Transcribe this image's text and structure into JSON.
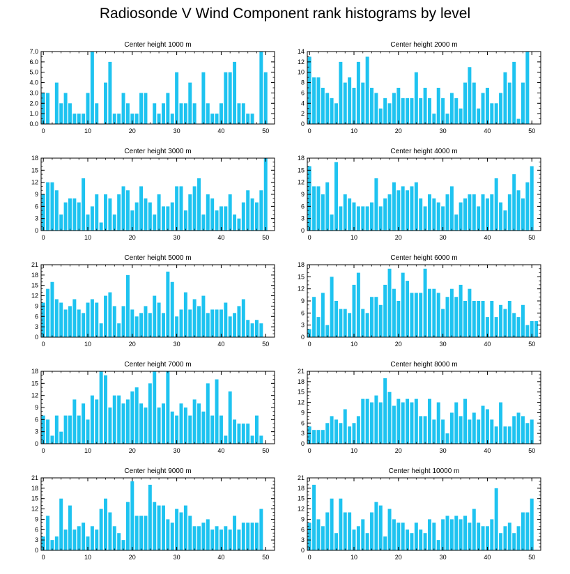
{
  "title": "Radiosonde V Wind Component rank histograms by level",
  "colors": {
    "bar": "#1EC3F0",
    "axis": "#000000",
    "background": "#ffffff"
  },
  "chart_data": [
    {
      "type": "bar",
      "title": "Center height 1000 m",
      "ylim": [
        0,
        7
      ],
      "yticks": [
        0,
        7
      ],
      "ytick_decimals": 1,
      "yminor": 0.5,
      "xlim": [
        -0.5,
        52
      ],
      "xticks": [
        0,
        10,
        20,
        30,
        40,
        50
      ],
      "values": [
        3,
        3,
        0,
        4,
        2,
        3,
        2,
        1,
        1,
        1,
        3,
        7,
        2,
        0,
        4,
        6,
        1,
        1,
        3,
        2,
        1,
        1,
        3,
        3,
        0,
        2,
        1,
        2,
        3,
        1,
        5,
        2,
        2,
        4,
        2,
        0,
        5,
        2,
        1,
        1,
        2,
        5,
        5,
        6,
        2,
        2,
        1,
        1,
        0,
        7,
        5
      ]
    },
    {
      "type": "bar",
      "title": "Center height 2000 m",
      "ylim": [
        0,
        14
      ],
      "yticks": [
        0,
        14
      ],
      "ytick_decimals": 0,
      "yminor": 1,
      "xlim": [
        -0.5,
        52
      ],
      "xticks": [
        0,
        10,
        20,
        30,
        40,
        50
      ],
      "values": [
        13,
        9,
        9,
        7,
        6,
        5,
        4,
        12,
        8,
        9,
        7,
        12,
        8,
        13,
        7,
        6,
        3,
        5,
        4,
        6,
        7,
        5,
        5,
        5,
        10,
        5,
        7,
        5,
        2,
        7,
        5,
        2,
        6,
        5,
        3,
        8,
        11,
        8,
        3,
        6,
        7,
        4,
        4,
        6,
        10,
        8,
        12,
        1,
        8,
        14
      ]
    },
    {
      "type": "bar",
      "title": "Center height 3000 m",
      "ylim": [
        0,
        18
      ],
      "yticks": [
        0,
        18
      ],
      "ytick_decimals": 0,
      "yminor": 1,
      "xlim": [
        -0.5,
        52
      ],
      "xticks": [
        0,
        10,
        20,
        30,
        40,
        50
      ],
      "values": [
        9,
        12,
        12,
        10,
        4,
        7,
        8,
        8,
        7,
        13,
        4,
        6,
        9,
        2,
        9,
        8,
        4,
        9,
        11,
        10,
        5,
        7,
        11,
        8,
        7,
        4,
        9,
        6,
        6,
        7,
        11,
        11,
        5,
        9,
        11,
        13,
        4,
        9,
        8,
        5,
        6,
        6,
        9,
        4,
        3,
        7,
        10,
        8,
        7,
        10,
        18
      ]
    },
    {
      "type": "bar",
      "title": "Center height 4000 m",
      "ylim": [
        0,
        18
      ],
      "yticks": [
        0,
        18
      ],
      "ytick_decimals": 0,
      "yminor": 1,
      "xlim": [
        -0.5,
        52
      ],
      "xticks": [
        0,
        10,
        20,
        30,
        40,
        50
      ],
      "values": [
        16,
        11,
        11,
        9,
        12,
        4,
        17,
        6,
        9,
        8,
        7,
        6,
        6,
        6,
        7,
        13,
        6,
        8,
        9,
        12,
        10,
        11,
        10,
        11,
        12,
        8,
        6,
        9,
        8,
        7,
        6,
        9,
        11,
        4,
        7,
        8,
        9,
        9,
        6,
        9,
        8,
        9,
        13,
        7,
        5,
        9,
        14,
        10,
        8,
        12,
        16
      ]
    },
    {
      "type": "bar",
      "title": "Center height 5000 m",
      "ylim": [
        0,
        21
      ],
      "yticks": [
        0,
        21
      ],
      "ytick_decimals": 0,
      "yminor": 1,
      "xlim": [
        -0.5,
        52
      ],
      "xticks": [
        0,
        10,
        20,
        30,
        40,
        50
      ],
      "values": [
        10,
        14,
        16,
        11,
        10,
        8,
        9,
        11,
        8,
        7,
        10,
        11,
        10,
        4,
        12,
        13,
        9,
        4,
        9,
        18,
        8,
        6,
        7,
        9,
        7,
        12,
        10,
        7,
        19,
        16,
        6,
        8,
        13,
        8,
        11,
        9,
        12,
        7,
        8,
        8,
        8,
        10,
        6,
        7,
        9,
        11,
        5,
        4,
        5,
        4
      ]
    },
    {
      "type": "bar",
      "title": "Center height 6000 m",
      "ylim": [
        0,
        18
      ],
      "yticks": [
        0,
        18
      ],
      "ytick_decimals": 0,
      "yminor": 1,
      "xlim": [
        -0.5,
        52
      ],
      "xticks": [
        0,
        10,
        20,
        30,
        40,
        50
      ],
      "values": [
        2,
        10,
        5,
        11,
        3,
        15,
        9,
        7,
        7,
        6,
        13,
        16,
        7,
        6,
        10,
        10,
        8,
        13,
        17,
        12,
        9,
        16,
        14,
        11,
        11,
        11,
        17,
        12,
        12,
        11,
        7,
        10,
        12,
        10,
        13,
        9,
        12,
        9,
        9,
        9,
        5,
        9,
        5,
        8,
        7,
        9,
        6,
        5,
        8,
        3,
        4,
        4
      ]
    },
    {
      "type": "bar",
      "title": "Center height 7000 m",
      "ylim": [
        0,
        18
      ],
      "yticks": [
        0,
        18
      ],
      "ytick_decimals": 0,
      "yminor": 1,
      "xlim": [
        -0.5,
        52
      ],
      "xticks": [
        0,
        10,
        20,
        30,
        40,
        50
      ],
      "values": [
        7,
        6,
        2,
        7,
        3,
        7,
        7,
        11,
        7,
        10,
        6,
        12,
        11,
        18,
        17,
        9,
        12,
        12,
        10,
        11,
        13,
        14,
        10,
        9,
        15,
        18,
        9,
        10,
        18,
        8,
        7,
        10,
        9,
        7,
        11,
        10,
        8,
        15,
        7,
        16,
        7,
        2,
        13,
        6,
        5,
        5,
        5,
        2,
        7,
        2
      ]
    },
    {
      "type": "bar",
      "title": "Center height 8000 m",
      "ylim": [
        0,
        21
      ],
      "yticks": [
        0,
        21
      ],
      "ytick_decimals": 0,
      "yminor": 1,
      "xlim": [
        -0.5,
        52
      ],
      "xticks": [
        0,
        10,
        20,
        30,
        40,
        50
      ],
      "values": [
        5,
        4,
        4,
        4,
        6,
        8,
        7,
        6,
        10,
        5,
        6,
        8,
        13,
        13,
        12,
        14,
        12,
        19,
        15,
        11,
        13,
        12,
        13,
        12,
        13,
        8,
        8,
        13,
        7,
        12,
        7,
        3,
        9,
        12,
        8,
        13,
        7,
        9,
        7,
        11,
        10,
        7,
        5,
        12,
        5,
        5,
        8,
        9,
        8,
        6,
        7
      ]
    },
    {
      "type": "bar",
      "title": "Center height 9000 m",
      "ylim": [
        0,
        21
      ],
      "yticks": [
        0,
        21
      ],
      "ytick_decimals": 0,
      "yminor": 1,
      "xlim": [
        -0.5,
        52
      ],
      "xticks": [
        0,
        10,
        20,
        30,
        40,
        50
      ],
      "values": [
        4,
        10,
        3,
        4,
        15,
        6,
        13,
        6,
        7,
        8,
        4,
        7,
        6,
        12,
        15,
        11,
        7,
        5,
        3,
        14,
        20,
        10,
        10,
        10,
        19,
        14,
        13,
        13,
        9,
        8,
        12,
        11,
        13,
        10,
        7,
        7,
        8,
        9,
        6,
        7,
        6,
        7,
        6,
        10,
        6,
        8,
        8,
        8,
        8,
        12
      ]
    },
    {
      "type": "bar",
      "title": "Center height 10000 m",
      "ylim": [
        0,
        21
      ],
      "yticks": [
        0,
        21
      ],
      "ytick_decimals": 0,
      "yminor": 1,
      "xlim": [
        -0.5,
        52
      ],
      "xticks": [
        0,
        10,
        20,
        30,
        40,
        50
      ],
      "values": [
        8,
        19,
        9,
        7,
        11,
        15,
        5,
        15,
        11,
        11,
        6,
        7,
        9,
        5,
        11,
        14,
        13,
        4,
        12,
        9,
        8,
        8,
        6,
        5,
        8,
        6,
        5,
        9,
        8,
        3,
        9,
        10,
        9,
        10,
        9,
        10,
        8,
        12,
        8,
        7,
        7,
        9,
        18,
        5,
        7,
        8,
        5,
        7,
        11,
        11,
        15
      ]
    }
  ]
}
